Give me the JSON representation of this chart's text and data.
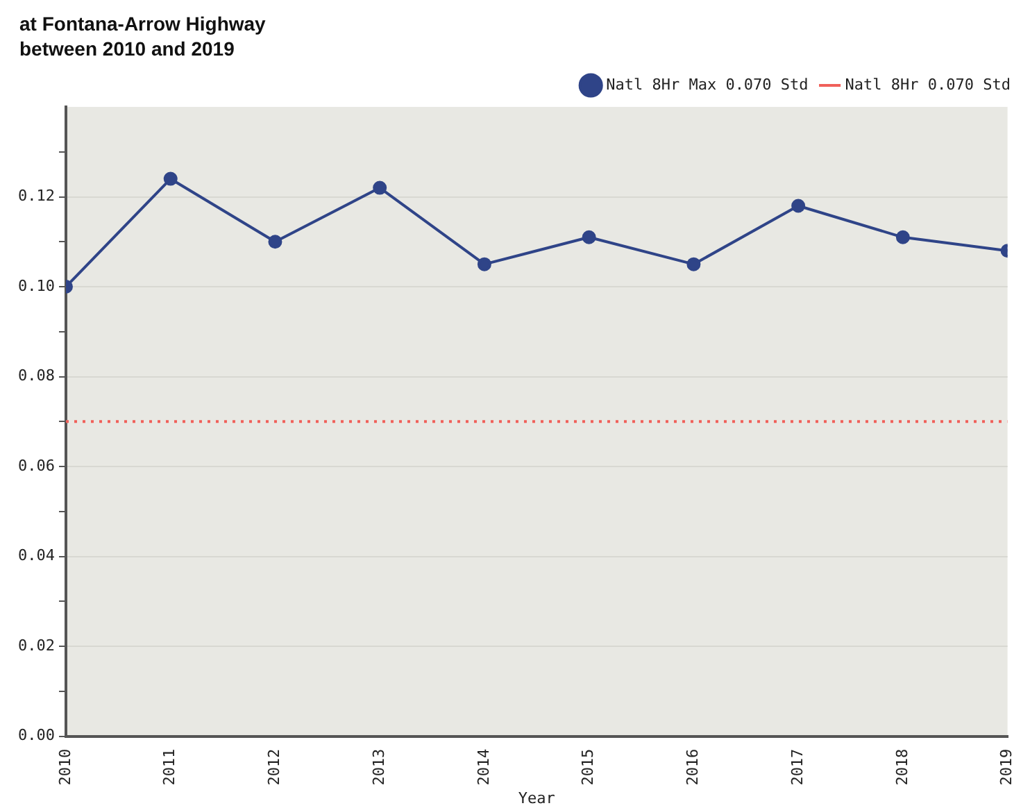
{
  "chart_data": {
    "type": "line",
    "title": "at Fontana-Arrow Highway",
    "subtitle": "between 2010 and 2019",
    "xlabel": "Year",
    "x": [
      2010,
      2011,
      2012,
      2013,
      2014,
      2015,
      2016,
      2017,
      2018,
      2019
    ],
    "series": [
      {
        "name": "Natl 8Hr Max 0.070 Std",
        "color": "#2f4488",
        "values": [
          0.1,
          0.124,
          0.11,
          0.122,
          0.105,
          0.111,
          0.105,
          0.118,
          0.111,
          0.108
        ]
      }
    ],
    "ref_lines": [
      {
        "axis": "y",
        "value": 0.07,
        "label": "Natl 8Hr 0.070 Std",
        "color": "#f0605a",
        "line_style": "dotted"
      }
    ],
    "xlim": [
      2010,
      2019
    ],
    "xticks": [
      2010,
      2011,
      2012,
      2013,
      2014,
      2015,
      2016,
      2017,
      2018,
      2019
    ],
    "ylim": [
      0,
      0.14
    ],
    "yticks": [
      {
        "value": 0,
        "label": "0.00"
      },
      {
        "value": 0.01,
        "label": null
      },
      {
        "value": 0.02,
        "label": "0.02"
      },
      {
        "value": 0.03,
        "label": null
      },
      {
        "value": 0.04,
        "label": "0.04"
      },
      {
        "value": 0.05,
        "label": null
      },
      {
        "value": 0.06,
        "label": "0.06"
      },
      {
        "value": 0.07,
        "label": null
      },
      {
        "value": 0.08,
        "label": "0.08"
      },
      {
        "value": 0.09,
        "label": null
      },
      {
        "value": 0.1,
        "label": "0.10"
      },
      {
        "value": 0.11,
        "label": null
      },
      {
        "value": 0.12,
        "label": "0.12"
      },
      {
        "value": 0.13,
        "label": null
      }
    ],
    "grid": "y",
    "legend": "top right",
    "marker": "circle",
    "line_style": "solid"
  }
}
